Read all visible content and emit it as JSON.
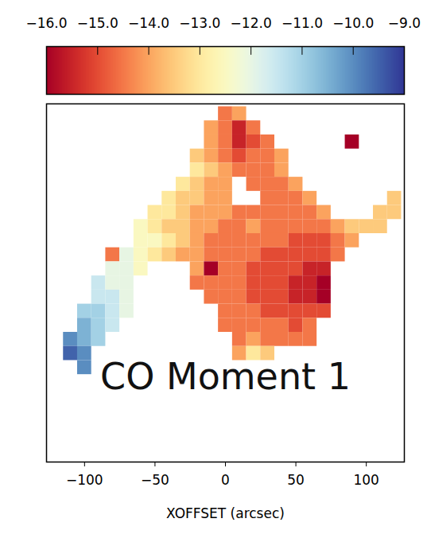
{
  "chart_data": {
    "type": "heatmap",
    "annotation": "CO Moment 1",
    "x_label": "XOFFSET (arcsec)",
    "xlim": [
      -127,
      127
    ],
    "ylim": [
      -127,
      127
    ],
    "xticks": [
      -100,
      -50,
      0,
      50,
      100
    ],
    "tick_labels": "x",
    "color": "RdYlBu",
    "colorbar": {
      "range": [
        -16,
        -9
      ],
      "ticks": [
        -16,
        -15,
        -14,
        -13,
        -12,
        -11,
        -10,
        -9
      ]
    },
    "x": [
      -120,
      -110,
      -100,
      -90,
      -80,
      -70,
      -60,
      -50,
      -40,
      -30,
      -20,
      -10,
      0,
      10,
      20,
      30,
      40,
      50,
      60,
      70,
      80,
      90,
      100,
      110,
      120
    ],
    "y": [
      120,
      110,
      100,
      90,
      80,
      70,
      60,
      50,
      40,
      30,
      20,
      10,
      0,
      -10,
      -20,
      -30,
      -40,
      -50,
      -60,
      -70,
      -80,
      -90,
      -100,
      -110,
      -120
    ],
    "values": [
      [
        null,
        null,
        null,
        null,
        null,
        null,
        null,
        null,
        null,
        null,
        null,
        null,
        -14.5,
        -14,
        null,
        null,
        null,
        null,
        null,
        null,
        null,
        null,
        null,
        null,
        null
      ],
      [
        null,
        null,
        null,
        null,
        null,
        null,
        null,
        null,
        null,
        null,
        null,
        -14,
        -14.5,
        -15.5,
        -14.5,
        null,
        null,
        null,
        null,
        null,
        null,
        null,
        null,
        null,
        null
      ],
      [
        null,
        null,
        null,
        null,
        null,
        null,
        null,
        null,
        null,
        null,
        null,
        -14,
        -14.5,
        -15.5,
        -15,
        -14.5,
        null,
        null,
        null,
        null,
        null,
        -16,
        null,
        null,
        null
      ],
      [
        null,
        null,
        null,
        null,
        null,
        null,
        null,
        null,
        null,
        null,
        -13.5,
        -14,
        -14.5,
        -15,
        -14.5,
        -14.5,
        -14,
        null,
        null,
        null,
        null,
        null,
        null,
        null,
        null
      ],
      [
        null,
        null,
        null,
        null,
        null,
        null,
        null,
        null,
        null,
        null,
        -13,
        -13.5,
        -14,
        -14.5,
        -14.5,
        -14.5,
        -14,
        null,
        null,
        null,
        null,
        null,
        null,
        null,
        null
      ],
      [
        null,
        null,
        null,
        null,
        null,
        null,
        null,
        null,
        null,
        -13,
        -13.5,
        -14,
        -14,
        null,
        -14.5,
        -14.5,
        -14.5,
        -14,
        null,
        null,
        null,
        null,
        null,
        null,
        null
      ],
      [
        null,
        null,
        null,
        null,
        null,
        null,
        null,
        null,
        -13,
        -13.5,
        -13.5,
        -14,
        -14,
        null,
        null,
        -14.5,
        -14.5,
        -14.5,
        -14,
        null,
        null,
        null,
        null,
        null,
        -13.5
      ],
      [
        null,
        null,
        null,
        null,
        null,
        null,
        null,
        -13,
        -13,
        -13.5,
        -14,
        -14,
        -14,
        -14.5,
        -14.5,
        -14.5,
        -14.5,
        -14.5,
        -14.5,
        -14,
        null,
        null,
        null,
        -13.5,
        -13.5
      ],
      [
        null,
        null,
        null,
        null,
        null,
        null,
        -12.5,
        -13,
        -13.5,
        -13.5,
        -14,
        -14,
        -14.5,
        -14.5,
        -14,
        -14.5,
        -14.5,
        -14.5,
        -14.5,
        -14.5,
        -14,
        -13.5,
        -13.5,
        -13.5,
        null
      ],
      [
        null,
        null,
        null,
        null,
        null,
        null,
        -12.5,
        -12.5,
        -13,
        -13.5,
        -14,
        -14.5,
        -14.5,
        -14.5,
        -14.5,
        -14.5,
        -14.5,
        -15,
        -15,
        -15,
        -14.5,
        -14,
        null,
        null,
        null
      ],
      [
        null,
        null,
        null,
        null,
        -14.5,
        -12,
        -12.5,
        -13,
        -13.5,
        -14,
        -14,
        -14.5,
        -14.5,
        -14.5,
        -14.5,
        -15,
        -15,
        -15,
        -15,
        -15,
        -14.5,
        null,
        null,
        null,
        null
      ],
      [
        null,
        null,
        null,
        null,
        -12,
        -12,
        -12.5,
        null,
        null,
        null,
        -14,
        -16,
        -14.5,
        -14.5,
        -15,
        -15,
        -15,
        -15,
        -15.5,
        -15.5,
        null,
        null,
        null,
        null,
        null
      ],
      [
        null,
        null,
        null,
        -11.5,
        -12,
        -12,
        null,
        null,
        null,
        null,
        -14.5,
        -14.5,
        -14.5,
        -14.5,
        -15,
        -15,
        -15,
        -15.5,
        -15.5,
        -16,
        null,
        null,
        null,
        null,
        null
      ],
      [
        null,
        null,
        null,
        -11.5,
        -11.5,
        -12,
        null,
        null,
        null,
        null,
        null,
        -14.5,
        -14.5,
        -14.5,
        -15,
        -15,
        -15,
        -15.5,
        -15.5,
        -16,
        null,
        null,
        null,
        null,
        null
      ],
      [
        null,
        null,
        -11,
        -11,
        -11.5,
        -12,
        null,
        null,
        null,
        null,
        null,
        null,
        -14.5,
        -14.5,
        -14.5,
        -15,
        -15,
        -15,
        -15,
        -15,
        null,
        null,
        null,
        null,
        null
      ],
      [
        null,
        null,
        -10.5,
        -11,
        -11.5,
        null,
        null,
        null,
        null,
        null,
        null,
        null,
        -14.5,
        -14.5,
        -14.5,
        -14.5,
        -14.5,
        -15,
        -14.5,
        null,
        null,
        null,
        null,
        null,
        null
      ],
      [
        null,
        -10,
        -10.5,
        -11,
        null,
        null,
        null,
        null,
        null,
        null,
        null,
        null,
        null,
        -14.5,
        -14,
        -14.5,
        -14.5,
        -14.5,
        -14.5,
        null,
        null,
        null,
        null,
        null,
        null
      ],
      [
        null,
        -9.5,
        -10,
        null,
        null,
        null,
        null,
        null,
        null,
        null,
        null,
        null,
        null,
        -14,
        -13,
        -13.5,
        null,
        null,
        null,
        null,
        null,
        null,
        null,
        null,
        null
      ],
      [
        null,
        null,
        -10,
        null,
        null,
        null,
        null,
        null,
        null,
        null,
        null,
        null,
        null,
        null,
        null,
        null,
        null,
        null,
        null,
        null,
        null,
        null,
        null,
        null,
        null
      ],
      [
        null,
        null,
        null,
        null,
        null,
        null,
        null,
        null,
        null,
        null,
        null,
        null,
        null,
        null,
        null,
        null,
        null,
        null,
        null,
        null,
        null,
        null,
        null,
        null,
        null
      ],
      [
        null,
        null,
        null,
        null,
        null,
        null,
        null,
        null,
        null,
        null,
        null,
        null,
        null,
        null,
        null,
        null,
        null,
        null,
        null,
        null,
        null,
        null,
        null,
        null,
        null
      ],
      [
        null,
        null,
        null,
        null,
        null,
        null,
        null,
        null,
        null,
        null,
        null,
        null,
        null,
        null,
        null,
        null,
        null,
        null,
        null,
        null,
        null,
        null,
        null,
        null,
        null
      ],
      [
        null,
        null,
        null,
        null,
        null,
        null,
        null,
        null,
        null,
        null,
        null,
        null,
        null,
        null,
        null,
        null,
        null,
        null,
        null,
        null,
        null,
        null,
        null,
        null,
        null
      ],
      [
        null,
        null,
        null,
        null,
        null,
        null,
        null,
        null,
        null,
        null,
        null,
        null,
        null,
        null,
        null,
        null,
        null,
        null,
        null,
        null,
        null,
        null,
        null,
        null,
        null
      ],
      [
        null,
        null,
        null,
        null,
        null,
        null,
        null,
        null,
        null,
        null,
        null,
        null,
        null,
        null,
        null,
        null,
        null,
        null,
        null,
        null,
        null,
        null,
        null,
        null,
        null
      ]
    ]
  }
}
